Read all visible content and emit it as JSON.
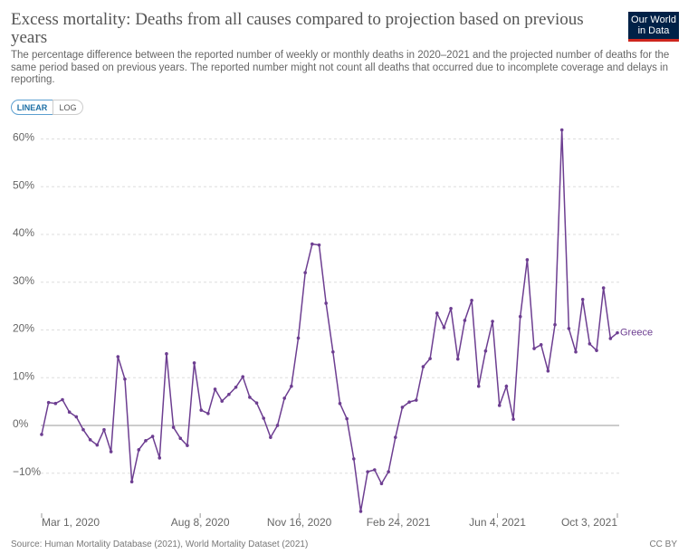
{
  "header": {
    "title": "Excess mortality: Deaths from all causes compared to projection based on previous years",
    "subtitle": "The percentage difference between the reported number of weekly or monthly deaths in 2020–2021 and the projected number of deaths for the same period based on previous years. The reported number might not count all deaths that occurred due to incomplete coverage and delays in reporting.",
    "logo": "Our World in Data"
  },
  "controls": {
    "linear": "LINEAR",
    "log": "LOG"
  },
  "chart_data": {
    "type": "line",
    "x": [
      "2020-03-01",
      "2020-03-08",
      "2020-03-15",
      "2020-03-22",
      "2020-03-29",
      "2020-04-05",
      "2020-04-12",
      "2020-04-19",
      "2020-04-26",
      "2020-05-03",
      "2020-05-10",
      "2020-05-17",
      "2020-05-24",
      "2020-05-31",
      "2020-06-07",
      "2020-06-14",
      "2020-06-21",
      "2020-06-28",
      "2020-07-05",
      "2020-07-12",
      "2020-07-19",
      "2020-07-26",
      "2020-08-02",
      "2020-08-09",
      "2020-08-16",
      "2020-08-23",
      "2020-08-30",
      "2020-09-06",
      "2020-09-13",
      "2020-09-20",
      "2020-09-27",
      "2020-10-04",
      "2020-10-11",
      "2020-10-18",
      "2020-10-25",
      "2020-11-01",
      "2020-11-08",
      "2020-11-15",
      "2020-11-22",
      "2020-11-29",
      "2020-12-06",
      "2020-12-13",
      "2020-12-20",
      "2020-12-27",
      "2021-01-03",
      "2021-01-10",
      "2021-01-17",
      "2021-01-24",
      "2021-01-31",
      "2021-02-07",
      "2021-02-14",
      "2021-02-21",
      "2021-02-28",
      "2021-03-07",
      "2021-03-14",
      "2021-03-21",
      "2021-03-28",
      "2021-04-04",
      "2021-04-11",
      "2021-04-18",
      "2021-04-25",
      "2021-05-02",
      "2021-05-09",
      "2021-05-16",
      "2021-05-23",
      "2021-05-30",
      "2021-06-06",
      "2021-06-13",
      "2021-06-20",
      "2021-06-27",
      "2021-07-04",
      "2021-07-11",
      "2021-07-18",
      "2021-07-25",
      "2021-08-01",
      "2021-08-08",
      "2021-08-15",
      "2021-08-22",
      "2021-08-29",
      "2021-09-05",
      "2021-09-12",
      "2021-09-19",
      "2021-09-26",
      "2021-10-03"
    ],
    "series": [
      {
        "name": "Greece",
        "color": "#6d3e91",
        "values": [
          -1.9,
          4.8,
          4.6,
          5.4,
          2.8,
          1.8,
          -0.9,
          -3,
          -4.1,
          -0.9,
          -5.5,
          14.4,
          9.7,
          -11.8,
          -5.1,
          -3.2,
          -2.3,
          -6.8,
          15,
          -0.4,
          -2.7,
          -4.2,
          13.1,
          3.2,
          2.5,
          7.6,
          5.1,
          6.5,
          8,
          10.2,
          5.9,
          4.7,
          1.5,
          -2.5,
          0,
          5.7,
          8.2,
          18.3,
          32,
          38,
          37.8,
          25.6,
          15.4,
          4.6,
          1.4,
          -7,
          -18,
          -9.7,
          -9.3,
          -12.2,
          -9.7,
          -2.5,
          3.8,
          4.9,
          5.3,
          12.3,
          14,
          23.5,
          20.5,
          24.5,
          13.9,
          22,
          26.2,
          8.2,
          15.6,
          21.8,
          4.2,
          8.2,
          1.3,
          22.8,
          34.7,
          16.1,
          16.9,
          11.4,
          21.1,
          61.9,
          20.3,
          15.4,
          26.4,
          17.1,
          15.7,
          28.8,
          18.2,
          19.4
        ]
      }
    ],
    "xlim": [
      "2020-03-01",
      "2021-10-03"
    ],
    "xticks": [
      {
        "value": "2020-03-01",
        "label": "Mar 1, 2020"
      },
      {
        "value": "2020-08-08",
        "label": "Aug 8, 2020"
      },
      {
        "value": "2020-11-16",
        "label": "Nov 16, 2020"
      },
      {
        "value": "2021-02-24",
        "label": "Feb 24, 2021"
      },
      {
        "value": "2021-06-04",
        "label": "Jun 4, 2021"
      },
      {
        "value": "2021-10-03",
        "label": "Oct 3, 2021"
      }
    ],
    "ylim": [
      -18.4,
      62
    ],
    "yticks": [
      {
        "value": -10,
        "label": "−10%"
      },
      {
        "value": 0,
        "label": "0%"
      },
      {
        "value": 10,
        "label": "10%"
      },
      {
        "value": 20,
        "label": "20%"
      },
      {
        "value": 30,
        "label": "30%"
      },
      {
        "value": 40,
        "label": "40%"
      },
      {
        "value": 50,
        "label": "50%"
      },
      {
        "value": 60,
        "label": "60%"
      }
    ],
    "grid": true
  },
  "footer": {
    "source": "Source: Human Mortality Database (2021), World Mortality Dataset (2021)",
    "license": "CC BY"
  }
}
